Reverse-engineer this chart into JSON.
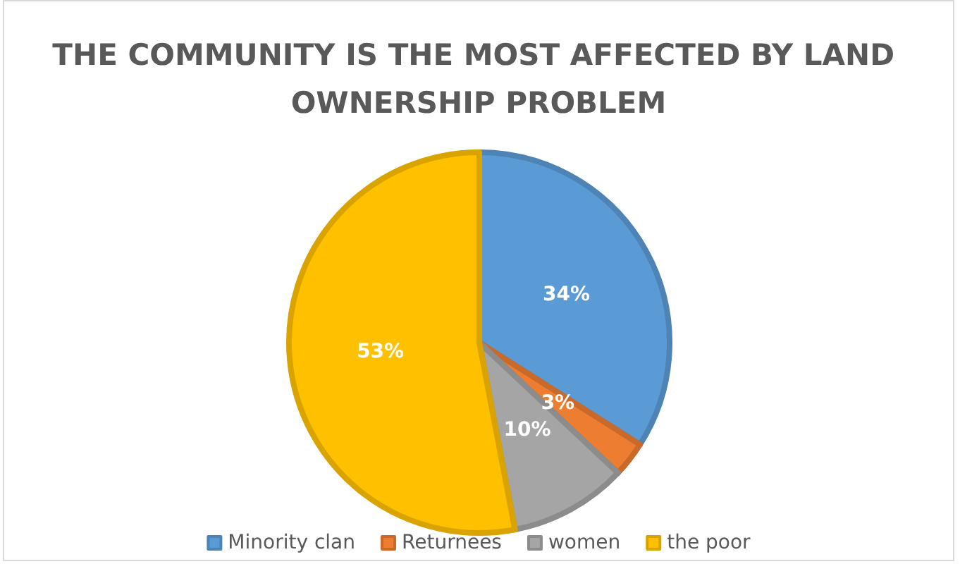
{
  "chart_data": {
    "type": "pie",
    "title": "THE COMMUNITY IS THE MOST AFFECTED BY LAND OWNERSHIP PROBLEM",
    "categories": [
      "Minority clan",
      "Returnees",
      "women",
      "the poor"
    ],
    "values": [
      34,
      3,
      10,
      53
    ],
    "value_labels": [
      "34%",
      "3%",
      "10%",
      "53%"
    ],
    "colors": [
      "#5b9bd5",
      "#ed7d31",
      "#a5a5a5",
      "#ffc000"
    ],
    "legend": "bottom"
  }
}
